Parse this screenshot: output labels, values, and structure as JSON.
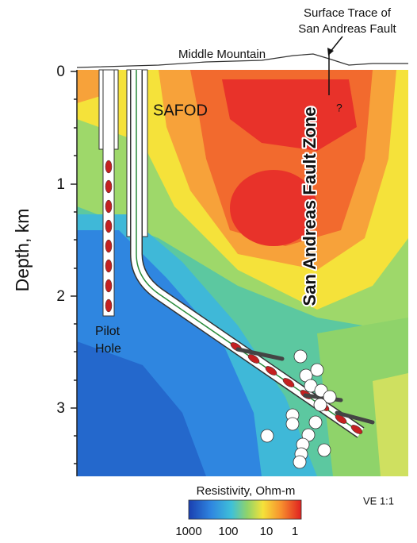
{
  "annotations": {
    "surface_trace": [
      "Surface Trace of",
      "San Andreas Fault"
    ],
    "middle_mountain": "Middle Mountain",
    "question_mark": "?",
    "safod": "SAFOD",
    "fault_zone": "San Andreas Fault Zone",
    "pilot_hole": [
      "Pilot",
      "Hole"
    ],
    "vertical_exaggeration": "VE 1:1"
  },
  "depth_axis": {
    "label": "Depth, km",
    "ticks": [
      "0",
      "1",
      "2",
      "3"
    ]
  },
  "colorbar": {
    "title": "Resistivity, Ohm-m",
    "ticks": [
      "1000",
      "100",
      "10",
      "1"
    ]
  }
}
